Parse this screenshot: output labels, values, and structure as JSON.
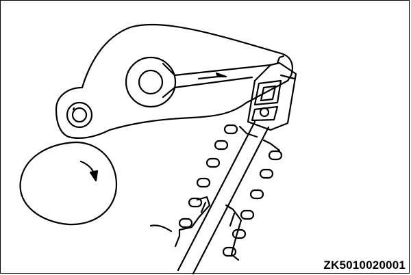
{
  "figure": {
    "code": "ZK5010020001",
    "stroke_color": "#000000",
    "background_color": "#ffffff",
    "parts": [
      "rocker-arm",
      "roller",
      "rocker-shaft",
      "cam-lobe",
      "hydraulic-lash-adjuster",
      "valve-stem",
      "valve-spring",
      "valve-stem-seal"
    ],
    "arrows": [
      "cam-rotation-arrow",
      "oil-flow-arrow"
    ]
  }
}
